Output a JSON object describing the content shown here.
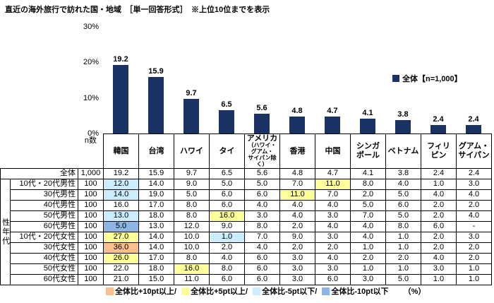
{
  "title": "直近の海外旅行で訪れた国・地域　［単一回答形式］　※上位10位までを表示",
  "chart_legend": "全体【n=1,000】",
  "colors": {
    "bar": "#1a3263",
    "hl_plus10": "#FABF8F",
    "hl_plus5": "#FFFF99",
    "hl_minus5": "#CCECFF",
    "hl_minus10": "#8DB4E2"
  },
  "chart_data": {
    "type": "bar",
    "title": "直近の海外旅行で訪れた国・地域",
    "categories": [
      "韓国",
      "台湾",
      "ハワイ",
      "タイ",
      "アメリカ（ハワイ・グアム・サイパン除く）",
      "香港",
      "中国",
      "シンガポール",
      "ベトナム",
      "フィリピン",
      "グアム・サイパン"
    ],
    "values": [
      19.2,
      15.9,
      9.7,
      6.5,
      5.6,
      4.8,
      4.7,
      4.1,
      3.8,
      2.4,
      2.4
    ],
    "ylabel": "%",
    "ylim": [
      0,
      30
    ],
    "yticks": [
      {
        "v": 30,
        "label": "30%"
      },
      {
        "v": 20,
        "label": "20%"
      },
      {
        "v": 10,
        "label": "10%"
      },
      {
        "v": 0,
        "label": "0%"
      }
    ],
    "legend": "全体【n=1,000】",
    "legend_position": "right",
    "grid": false
  },
  "table": {
    "group_label": "性年代",
    "n_header": "n数",
    "col_headers": [
      {
        "label": "韓国"
      },
      {
        "label": "台湾"
      },
      {
        "label": "ハワイ"
      },
      {
        "label": "タイ"
      },
      {
        "label": "アメリカ",
        "sub": "（ハワイ・\nグアム・\nサイパン除く）"
      },
      {
        "label": "香港"
      },
      {
        "label": "中国"
      },
      {
        "label": "シンガ\nポール"
      },
      {
        "label": "ベトナム"
      },
      {
        "label": "フィリ\nピン"
      },
      {
        "label": "グアム・\nサイパン"
      }
    ],
    "rows": [
      {
        "label": "全体",
        "n": "1,000",
        "total": true,
        "values": [
          19.2,
          15.9,
          9.7,
          6.5,
          5.6,
          4.8,
          4.7,
          4.1,
          3.8,
          2.4,
          2.4
        ]
      },
      {
        "label": "10代・20代男性",
        "n": "100",
        "values": [
          12.0,
          14.0,
          9.0,
          5.0,
          5.0,
          7.0,
          11.0,
          8.0,
          4.0,
          1.0,
          3.0
        ]
      },
      {
        "label": "30代男性",
        "n": "100",
        "values": [
          14.0,
          19.0,
          5.0,
          6.0,
          6.0,
          11.0,
          7.0,
          2.0,
          5.0,
          4.0,
          4.0
        ]
      },
      {
        "label": "40代男性",
        "n": "100",
        "values": [
          16.0,
          17.0,
          8.0,
          6.0,
          4.0,
          4.0,
          4.0,
          5.0,
          6.0,
          2.0,
          2.0
        ]
      },
      {
        "label": "50代男性",
        "n": "100",
        "values": [
          13.0,
          18.0,
          8.0,
          16.0,
          3.0,
          4.0,
          3.0,
          7.0,
          5.0,
          2.0,
          4.0
        ]
      },
      {
        "label": "60代男性",
        "n": "100",
        "values": [
          5.0,
          13.0,
          12.0,
          9.0,
          8.0,
          2.0,
          4.0,
          4.0,
          8.0,
          6.0,
          "-"
        ]
      },
      {
        "label": "10代・20代女性",
        "n": "100",
        "values": [
          27.0,
          14.0,
          10.0,
          1.0,
          7.0,
          9.0,
          3.0,
          4.0,
          1.0,
          2.0,
          3.0
        ]
      },
      {
        "label": "30代女性",
        "n": "100",
        "values": [
          36.0,
          14.0,
          10.0,
          2.0,
          4.0,
          2.0,
          2.0,
          1.0,
          1.0,
          2.0,
          2.0
        ]
      },
      {
        "label": "40代女性",
        "n": "100",
        "values": [
          26.0,
          17.0,
          8.0,
          4.0,
          6.0,
          3.0,
          4.0,
          2.0,
          2.0,
          4.0,
          2.0
        ]
      },
      {
        "label": "50代女性",
        "n": "100",
        "values": [
          22.0,
          18.0,
          16.0,
          8.0,
          6.0,
          3.0,
          3.0,
          1.0,
          1.0,
          3.0,
          1.0
        ]
      },
      {
        "label": "60代女性",
        "n": "100",
        "values": [
          21.0,
          15.0,
          11.0,
          6.0,
          6.0,
          3.0,
          6.0,
          3.0,
          5.0,
          1.0,
          1.0
        ]
      }
    ]
  },
  "bottom_legend": {
    "items": [
      {
        "label": "全体比+10pt以上/",
        "color_key": "hl_plus10"
      },
      {
        "label": "全体比+5pt以上/",
        "color_key": "hl_plus5"
      },
      {
        "label": "全体比-5pt以下/",
        "color_key": "hl_minus5"
      },
      {
        "label": "全体比-10pt以下",
        "color_key": "hl_minus10"
      }
    ],
    "unit": "（%）"
  }
}
